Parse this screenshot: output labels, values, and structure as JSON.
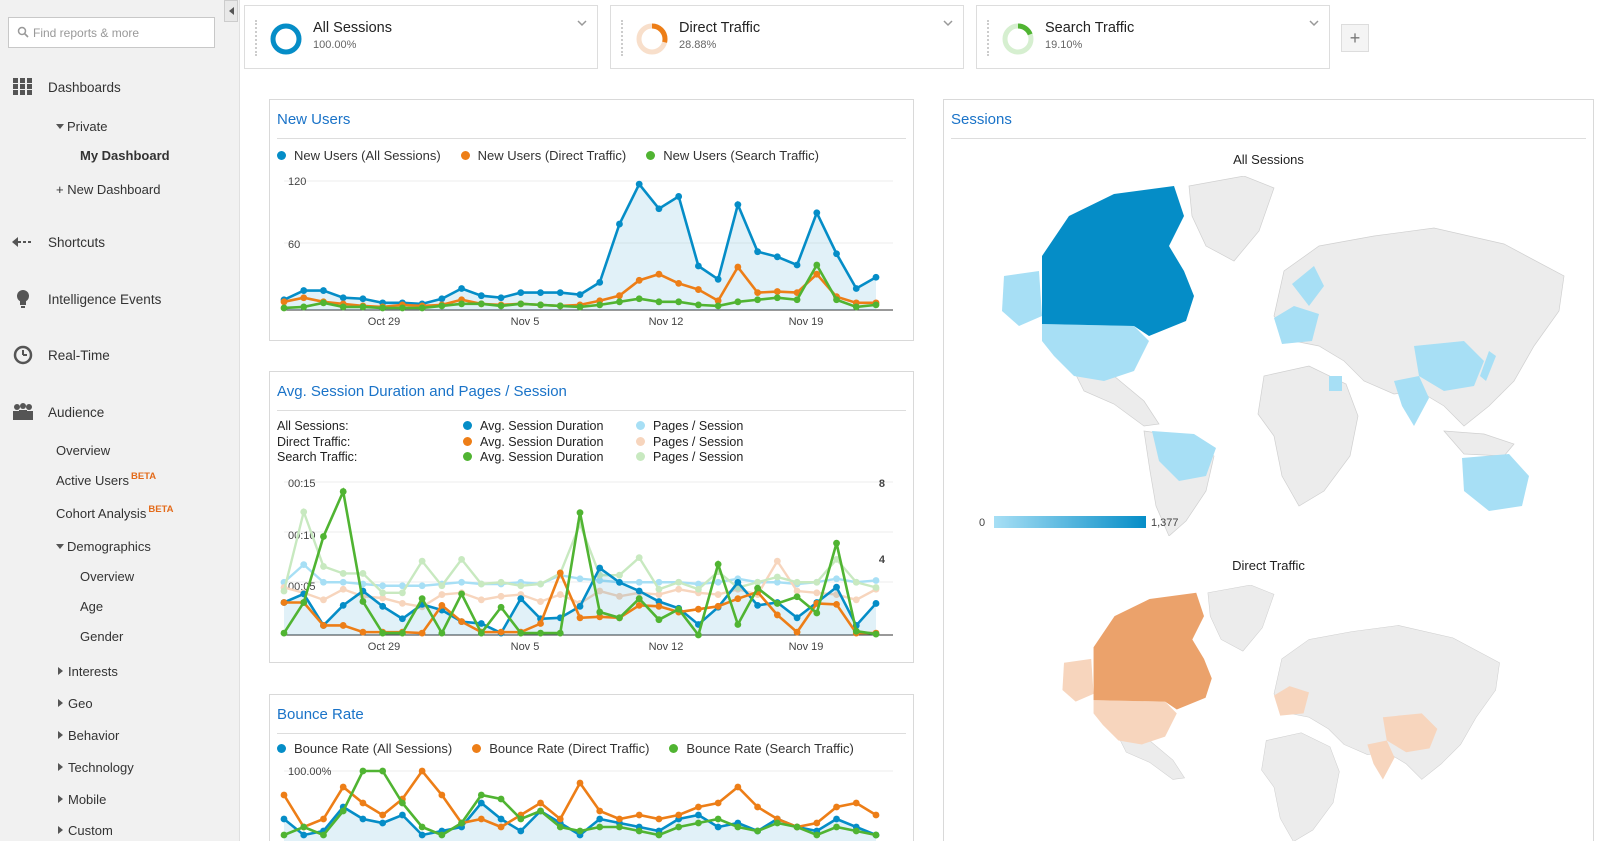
{
  "sidebar": {
    "search_placeholder": "Find reports & more",
    "dashboards": "Dashboards",
    "private": "Private",
    "my_dashboard": "My Dashboard",
    "new_dashboard": "+ New Dashboard",
    "shortcuts": "Shortcuts",
    "intelligence": "Intelligence Events",
    "realtime": "Real-Time",
    "audience": "Audience",
    "overview": "Overview",
    "active_users": "Active Users",
    "cohort": "Cohort Analysis",
    "beta": "BETA",
    "demographics": "Demographics",
    "demo_overview": "Overview",
    "age": "Age",
    "gender": "Gender",
    "interests": "Interests",
    "geo": "Geo",
    "behavior": "Behavior",
    "technology": "Technology",
    "mobile": "Mobile",
    "custom": "Custom"
  },
  "segments": [
    {
      "name": "All Sessions",
      "pct": "100.00%",
      "color": "#058dc7",
      "value": 1.0
    },
    {
      "name": "Direct Traffic",
      "pct": "28.88%",
      "color": "#ed7e17",
      "value": 0.2888
    },
    {
      "name": "Search Traffic",
      "pct": "19.10%",
      "color": "#50b432",
      "value": 0.191
    }
  ],
  "add_segment": "+",
  "colors": {
    "all": "#058dc7",
    "direct": "#ed7e17",
    "search": "#50b432",
    "all_light": "#a7dff5",
    "direct_light": "#f7d5bd",
    "search_light": "#c8e9c0"
  },
  "widgets": {
    "new_users": {
      "title": "New Users",
      "legend": [
        "New Users (All Sessions)",
        "New Users (Direct Traffic)",
        "New Users (Search Traffic)"
      ],
      "yticks": [
        "120",
        "60"
      ],
      "xticks": [
        "Oct 29",
        "Nov 5",
        "Nov 12",
        "Nov 19"
      ]
    },
    "duration": {
      "title": "Avg. Session Duration and Pages / Session",
      "rows": [
        "All Sessions:",
        "Direct Traffic:",
        "Search Traffic:"
      ],
      "metric_a": "Avg. Session Duration",
      "metric_b": "Pages / Session",
      "yticks_left": [
        "00:15",
        "00:10",
        "00:05"
      ],
      "yticks_right": [
        "8",
        "4"
      ],
      "xticks": [
        "Oct 29",
        "Nov 5",
        "Nov 12",
        "Nov 19"
      ]
    },
    "bounce": {
      "title": "Bounce Rate",
      "legend": [
        "Bounce Rate (All Sessions)",
        "Bounce Rate (Direct Traffic)",
        "Bounce Rate (Search Traffic)"
      ],
      "ytick": "100.00%"
    },
    "sessions": {
      "title": "Sessions",
      "map1_title": "All Sessions",
      "map2_title": "Direct Traffic",
      "scale_min": "0",
      "scale_max": "1,377"
    }
  },
  "chart_data": [
    {
      "type": "line",
      "title": "New Users",
      "xlabel": "",
      "ylabel": "",
      "ylim": [
        0,
        130
      ],
      "x_range": [
        0,
        30
      ],
      "tick_positions": {
        "Oct 29": 5,
        "Nov 5": 12,
        "Nov 12": 19,
        "Nov 19": 26
      },
      "series": [
        {
          "name": "New Users (All Sessions)",
          "values": [
            10,
            19,
            19,
            12,
            11,
            7,
            7,
            6,
            11,
            21,
            14,
            12,
            17,
            17,
            17,
            15,
            27,
            84,
            123,
            99,
            111,
            43,
            30,
            103,
            57,
            52,
            44,
            95,
            55,
            21,
            32
          ]
        },
        {
          "name": "New Users (Direct Traffic)",
          "values": [
            8,
            12,
            8,
            6,
            4,
            3,
            5,
            4,
            5,
            10,
            6,
            5,
            6,
            5,
            4,
            5,
            9,
            14,
            29,
            35,
            26,
            20,
            9,
            42,
            17,
            18,
            17,
            35,
            13,
            7,
            7
          ]
        },
        {
          "name": "New Users (Search Traffic)",
          "values": [
            2,
            3,
            7,
            3,
            3,
            2,
            2,
            2,
            4,
            6,
            6,
            4,
            6,
            5,
            4,
            3,
            5,
            8,
            11,
            8,
            8,
            5,
            4,
            8,
            10,
            12,
            10,
            44,
            10,
            3,
            5
          ]
        }
      ]
    },
    {
      "type": "line",
      "title": "Avg. Session Duration and Pages / Session",
      "ylim_duration_seconds": [
        0,
        16
      ],
      "ylim_pages": [
        0,
        8.7
      ],
      "series": [
        {
          "name": "Avg. Session Duration (All Sessions)",
          "values": [
            3.4,
            4.3,
            1,
            3.1,
            4.6,
            3,
            1.7,
            3.2,
            2.6,
            1.4,
            1.2,
            0.2,
            3.8,
            1.7,
            1.8,
            3,
            7,
            5.5,
            4.6,
            3.5,
            2.8,
            1.1,
            2.9,
            5.5,
            3.1,
            3.4,
            1.8,
            3.4,
            5,
            1,
            3.3
          ]
        },
        {
          "name": "Avg. Session Duration (Direct Traffic)",
          "values": [
            3.4,
            3.4,
            1,
            1,
            0.3,
            0.3,
            0.3,
            0.2,
            3.1,
            1.4,
            0.3,
            0.3,
            0.3,
            1.2,
            6.5,
            1.8,
            1.9,
            1.8,
            3.1,
            3,
            2.4,
            2.7,
            3,
            3.8,
            4.5,
            2.1,
            0.3,
            3.3,
            3.2,
            0.2,
            0.2
          ]
        },
        {
          "name": "Avg. Session Duration (Search Traffic)",
          "values": [
            0.2,
            3.4,
            10.3,
            15,
            3.5,
            0.2,
            0.2,
            3.8,
            0.2,
            4.3,
            0.2,
            2.9,
            0.2,
            0.2,
            0.2,
            12.8,
            2.4,
            1.8,
            3.8,
            1.6,
            2.7,
            0,
            7.4,
            1.1,
            4.9,
            3.3,
            4,
            2.3,
            9.6,
            0.4,
            0.1
          ]
        },
        {
          "name": "Pages / Session (All Sessions)",
          "values": [
            3,
            4,
            3,
            3,
            2.9,
            2.8,
            2.8,
            2.8,
            2.9,
            3,
            2.9,
            2.9,
            3,
            2.9,
            3.4,
            3.2,
            3.1,
            3,
            3,
            3,
            3,
            2.9,
            3,
            3.2,
            3,
            3,
            2.9,
            3,
            3.2,
            3,
            3.1
          ]
        },
        {
          "name": "Pages / Session (Direct Traffic)",
          "values": [
            2.7,
            2.4,
            2,
            2.6,
            2.2,
            2.1,
            1.8,
            1.6,
            2.3,
            2.4,
            2,
            2.2,
            2.3,
            1.9,
            2.3,
            1.8,
            2.5,
            2.2,
            2.4,
            2.3,
            2.6,
            2.4,
            2.3,
            2.6,
            2.3,
            4.2,
            2.5,
            2.4,
            2.3,
            2,
            2.6
          ]
        },
        {
          "name": "Pages / Session (Search Traffic)",
          "values": [
            2.5,
            7,
            3.9,
            3.5,
            3.5,
            2.4,
            2.4,
            4.2,
            2.8,
            4.3,
            2.9,
            3,
            2.8,
            2.9,
            3.5,
            6.3,
            3.4,
            3.4,
            4.4,
            2.6,
            3,
            2.6,
            3.6,
            2.7,
            3,
            3.3,
            3,
            3,
            4.3,
            3,
            2.7
          ]
        }
      ]
    },
    {
      "type": "line",
      "title": "Bounce Rate",
      "ylim": [
        0,
        100
      ],
      "series": [
        {
          "name": "Bounce Rate (All Sessions)",
          "values": [
            40,
            20,
            25,
            55,
            40,
            35,
            45,
            20,
            25,
            30,
            60,
            40,
            25,
            50,
            35,
            20,
            40,
            35,
            30,
            25,
            40,
            45,
            30,
            35,
            25,
            40,
            30,
            25,
            40,
            30,
            20
          ]
        },
        {
          "name": "Bounce Rate (Direct Traffic)",
          "values": [
            70,
            30,
            40,
            80,
            60,
            45,
            65,
            100,
            70,
            35,
            40,
            30,
            45,
            60,
            40,
            85,
            50,
            40,
            45,
            40,
            45,
            55,
            60,
            80,
            55,
            40,
            30,
            35,
            55,
            60,
            45
          ]
        },
        {
          "name": "Bounce Rate (Search Traffic)",
          "values": [
            20,
            30,
            20,
            50,
            100,
            100,
            60,
            30,
            20,
            35,
            70,
            65,
            40,
            50,
            30,
            25,
            30,
            30,
            25,
            20,
            30,
            35,
            40,
            30,
            25,
            35,
            30,
            20,
            30,
            25,
            20
          ]
        }
      ]
    }
  ]
}
